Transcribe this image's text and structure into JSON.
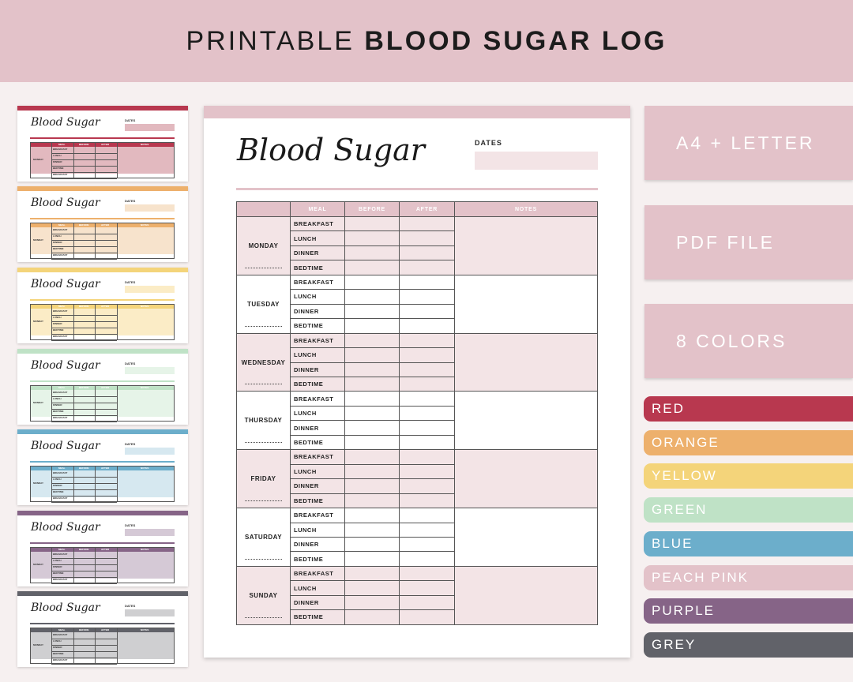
{
  "banner": {
    "title_light": "PRINTABLE",
    "title_bold": "BLOOD SUGAR LOG"
  },
  "page": {
    "title": "Blood Sugar",
    "dates_label": "DATES",
    "columns": [
      "MEAL",
      "BEFORE",
      "AFTER",
      "NOTES"
    ],
    "days": [
      "MONDAY",
      "TUESDAY",
      "WEDNESDAY",
      "THURSDAY",
      "FRIDAY",
      "SATURDAY",
      "SUNDAY"
    ],
    "meals": [
      "BREAKFAST",
      "LUNCH",
      "DINNER",
      "BEDTIME"
    ]
  },
  "thumbnail": {
    "title": "Blood Sugar",
    "dates_label": "DATES",
    "columns": [
      "MEAL",
      "BEFORE",
      "AFTER",
      "NOTES"
    ],
    "day": "MONDAY",
    "meals": [
      "BREAKFAST",
      "LUNCH",
      "DINNER",
      "BEDTIME",
      "BREAKFAST"
    ]
  },
  "features": [
    "A4 + LETTER",
    "PDF FILE",
    "8 COLORS"
  ],
  "colors": [
    {
      "name": "RED",
      "hex": "#b8384f",
      "light": "#e2b9bf"
    },
    {
      "name": "ORANGE",
      "hex": "#edb06c",
      "light": "#f7e3cc"
    },
    {
      "name": "YELLOW",
      "hex": "#f4d47a",
      "light": "#fbecc6"
    },
    {
      "name": "GREEN",
      "hex": "#bfe2c6",
      "light": "#e6f4e8"
    },
    {
      "name": "BLUE",
      "hex": "#6caecb",
      "light": "#d6e8f0"
    },
    {
      "name": "PEACH PINK",
      "hex": "#e3c2c9",
      "light": "#f3e4e6"
    },
    {
      "name": "PURPLE",
      "hex": "#866487",
      "light": "#d5c9d6"
    },
    {
      "name": "GREY",
      "hex": "#616269",
      "light": "#cfcfd1"
    }
  ],
  "thumbnail_colors": [
    {
      "name": "red",
      "hex": "#b8384f",
      "light": "#e2b9bf"
    },
    {
      "name": "orange",
      "hex": "#edb06c",
      "light": "#f7e3cc"
    },
    {
      "name": "yellow",
      "hex": "#f4d47a",
      "light": "#fbecc6"
    },
    {
      "name": "green",
      "hex": "#bfe2c6",
      "light": "#e6f4e8"
    },
    {
      "name": "blue",
      "hex": "#6caecb",
      "light": "#d6e8f0"
    },
    {
      "name": "purple",
      "hex": "#866487",
      "light": "#d5c9d6"
    },
    {
      "name": "grey",
      "hex": "#616269",
      "light": "#cfcfd1"
    }
  ]
}
